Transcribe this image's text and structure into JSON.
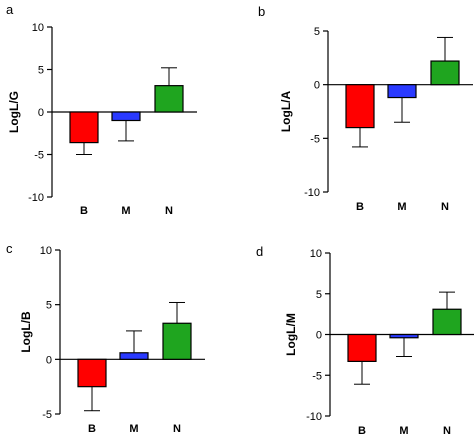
{
  "chart_data": [
    {
      "type": "bar",
      "panel_label": "a",
      "ylabel": "LogL/G",
      "categories": [
        "B",
        "M",
        "N"
      ],
      "values": [
        -3.6,
        -1.0,
        3.1
      ],
      "errors": [
        1.4,
        2.4,
        2.1
      ],
      "colors": [
        "#ff0000",
        "#2a3aff",
        "#1fa51f"
      ],
      "ylim": [
        -10,
        10
      ],
      "yticks": [
        "10",
        "5",
        "0",
        "-5",
        "-10"
      ],
      "ytick_values": [
        10,
        5,
        0,
        -5,
        -10
      ],
      "grid": false
    },
    {
      "type": "bar",
      "panel_label": "b",
      "ylabel": "LogL/A",
      "categories": [
        "B",
        "M",
        "N"
      ],
      "values": [
        -4.0,
        -1.2,
        2.2
      ],
      "errors": [
        1.8,
        2.3,
        2.2
      ],
      "colors": [
        "#ff0000",
        "#2a3aff",
        "#1fa51f"
      ],
      "ylim": [
        -10,
        5
      ],
      "yticks": [
        "5",
        "0",
        "-5",
        "-10"
      ],
      "ytick_values": [
        5,
        0,
        -5,
        -10
      ],
      "grid": false
    },
    {
      "type": "bar",
      "panel_label": "c",
      "ylabel": "LogL/B",
      "categories": [
        "B",
        "M",
        "N"
      ],
      "values": [
        -2.5,
        0.6,
        3.3
      ],
      "errors": [
        2.2,
        2.0,
        1.9
      ],
      "colors": [
        "#ff0000",
        "#2a3aff",
        "#1fa51f"
      ],
      "ylim": [
        -5,
        10
      ],
      "yticks": [
        "10",
        "5",
        "0",
        "-5"
      ],
      "ytick_values": [
        10,
        5,
        0,
        -5
      ],
      "grid": false
    },
    {
      "type": "bar",
      "panel_label": "d",
      "ylabel": "LogL/M",
      "categories": [
        "B",
        "M",
        "N"
      ],
      "values": [
        -3.3,
        -0.4,
        3.1
      ],
      "errors": [
        2.8,
        2.3,
        2.1
      ],
      "colors": [
        "#ff0000",
        "#2a3aff",
        "#1fa51f"
      ],
      "ylim": [
        -10,
        10
      ],
      "yticks": [
        "10",
        "5",
        "0",
        "-5",
        "-10"
      ],
      "ytick_values": [
        10,
        5,
        0,
        -5,
        -10
      ],
      "grid": false
    }
  ]
}
